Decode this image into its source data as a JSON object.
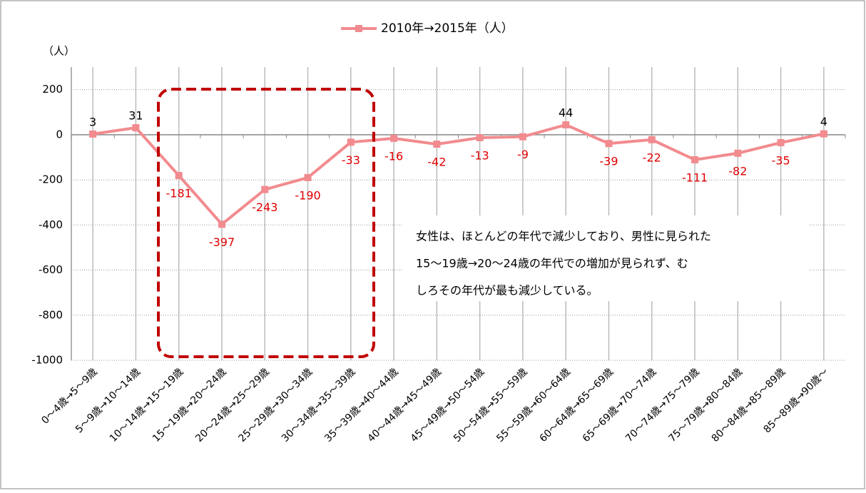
{
  "chart_data": {
    "type": "line",
    "legend_label": "2010年→2015年（人）",
    "y_axis_label": "（人）",
    "categories": [
      "0～4歳→5～9歳",
      "5～9歳→10～14歳",
      "10～14歳→15～19歳",
      "15～19歳→20～24歳",
      "20～24歳→25～29歳",
      "25～29歳→30～34歳",
      "30～34歳→35～39歳",
      "35～39歳→40～44歳",
      "40～44歳→45～49歳",
      "45～49歳→50～54歳",
      "50～54歳→55～59歳",
      "55～59歳→60～64歳",
      "60～64歳→65～69歳",
      "65～69歳→70～74歳",
      "70～74歳→75～79歳",
      "75～79歳→80～84歳",
      "80～84歳→85～89歳",
      "85～89歳→90歳～"
    ],
    "series": [
      {
        "name": "2010年→2015年（人）",
        "color": "#f28b8f",
        "values": [
          3,
          31,
          -181,
          -397,
          -243,
          -190,
          -33,
          -16,
          -42,
          -13,
          -9,
          44,
          -39,
          -22,
          -111,
          -82,
          -35,
          4
        ]
      }
    ],
    "ylim": [
      -1000,
      300
    ],
    "yticks": [
      200,
      0,
      -200,
      -400,
      -600,
      -800,
      -1000
    ],
    "grid": true,
    "annotation": [
      "女性は、ほとんどの年代で減少しており、男性に見られた",
      "15～19歳→20～24歳の年代での増加が見られず、む",
      "しろその年代が最も減少している。"
    ]
  }
}
